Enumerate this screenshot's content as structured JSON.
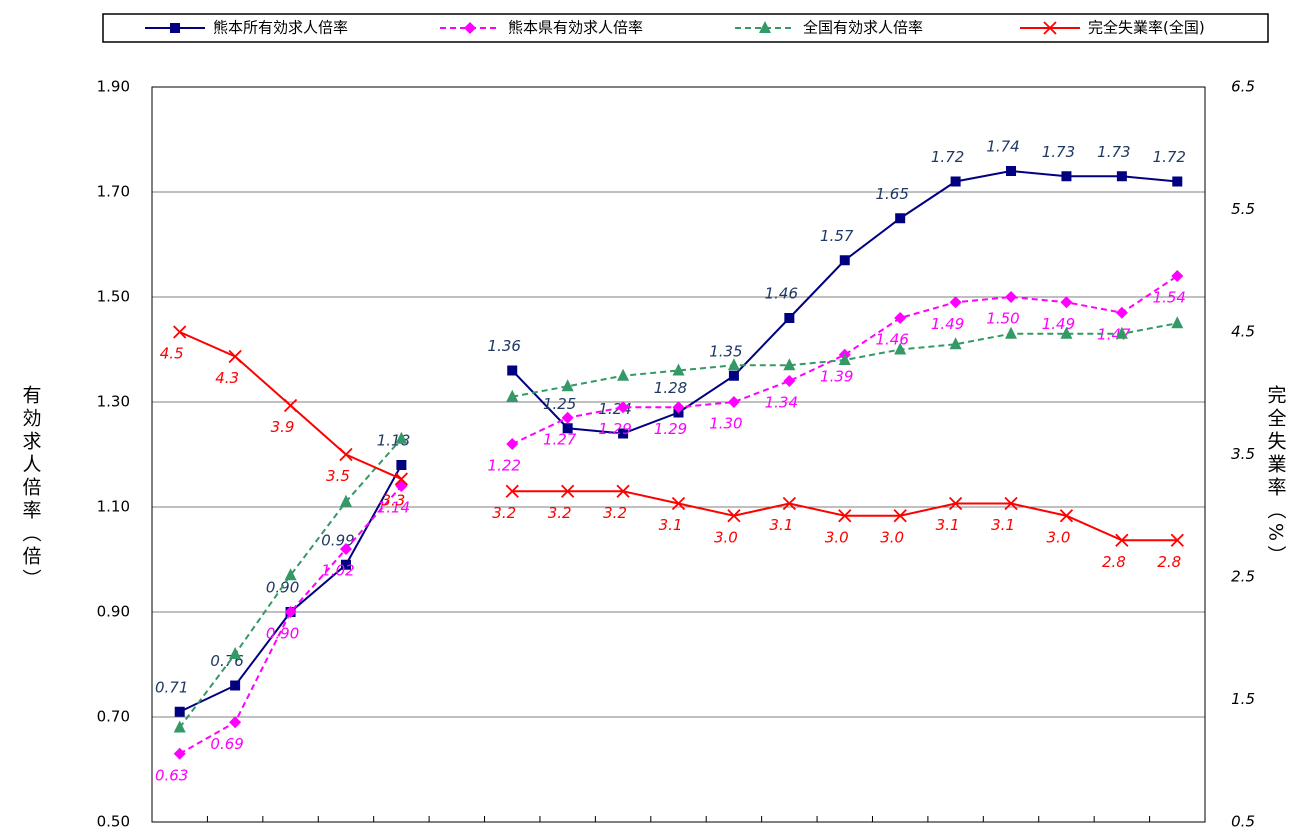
{
  "chart_data": {
    "type": "line",
    "y_title": "有効求人倍率（倍）",
    "y2_title": "完全失業率（%）",
    "categories": [
      null,
      null,
      null,
      null,
      null,
      null,
      null,
      null,
      null,
      null,
      null,
      null,
      null,
      null,
      null,
      null,
      null,
      null,
      null
    ],
    "ylim": [
      0.5,
      1.9
    ],
    "yticks": [
      {
        "value": 0.5,
        "label": "0.50"
      },
      {
        "value": 0.7,
        "label": "0.70"
      },
      {
        "value": 0.9,
        "label": "0.90"
      },
      {
        "value": 1.1,
        "label": "1.10"
      },
      {
        "value": 1.3,
        "label": "1.30"
      },
      {
        "value": 1.5,
        "label": "1.50"
      },
      {
        "value": 1.7,
        "label": "1.70"
      },
      {
        "value": 1.9,
        "label": "1.90"
      }
    ],
    "y2lim": [
      0.5,
      6.5
    ],
    "y2ticks": [
      0.5,
      1.5,
      2.5,
      3.5,
      4.5,
      5.5,
      6.5
    ],
    "grid": true,
    "legend": "top",
    "series": [
      {
        "name": "熊本所有効求人倍率",
        "color": "#000080",
        "marker": "square",
        "dash": false,
        "values": [
          0.71,
          0.76,
          0.9,
          0.99,
          1.18,
          null,
          1.36,
          1.25,
          1.24,
          1.28,
          1.35,
          1.46,
          1.57,
          1.65,
          1.72,
          1.74,
          1.73,
          1.73,
          1.72
        ],
        "value_labels": [
          "0.71",
          "0.76",
          "0.90",
          "0.99",
          "1.18",
          null,
          "1.36",
          "1.25",
          "1.24",
          "1.28",
          "1.35",
          "1.46",
          "1.57",
          "1.65",
          "1.72",
          "1.74",
          "1.73",
          "1.73",
          "1.72"
        ]
      },
      {
        "name": "熊本県有効求人倍率",
        "color": "#ff00ff",
        "marker": "diamond",
        "dash": true,
        "values": [
          0.63,
          0.69,
          0.9,
          1.02,
          1.14,
          null,
          1.22,
          1.27,
          1.29,
          1.29,
          1.3,
          1.34,
          1.39,
          1.46,
          1.49,
          1.5,
          1.49,
          1.47,
          1.54
        ],
        "value_labels": [
          "0.63",
          "0.69",
          "0.90",
          "1.02",
          "1.14",
          null,
          "1.22",
          "1.27",
          "1.29",
          "1.29",
          "1.30",
          "1.34",
          "1.39",
          "1.46",
          "1.49",
          "1.50",
          "1.49",
          "1.47",
          "1.54"
        ]
      },
      {
        "name": "全国有効求人倍率",
        "color": "#339966",
        "marker": "triangle",
        "dash": true,
        "values": [
          0.68,
          0.82,
          0.97,
          1.11,
          1.23,
          null,
          1.31,
          1.33,
          1.35,
          1.36,
          1.37,
          1.37,
          1.38,
          1.4,
          1.41,
          1.43,
          1.43,
          1.43,
          1.45
        ]
      },
      {
        "name": "完全失業率(全国)",
        "color": "#ff0000",
        "marker": "x",
        "dash": false,
        "axis": "y2",
        "values": [
          4.5,
          4.3,
          3.9,
          3.5,
          3.3,
          null,
          3.2,
          3.2,
          3.2,
          3.1,
          3.0,
          3.1,
          3.0,
          3.0,
          3.1,
          3.1,
          3.0,
          2.8,
          2.8
        ],
        "value_labels": [
          "4.5",
          "4.3",
          "3.9",
          "3.5",
          "3.3",
          null,
          "3.2",
          "3.2",
          "3.2",
          "3.1",
          "3.0",
          "3.1",
          "3.0",
          "3.0",
          "3.1",
          "3.1",
          "3.0",
          "2.8",
          "2.8"
        ]
      }
    ]
  }
}
